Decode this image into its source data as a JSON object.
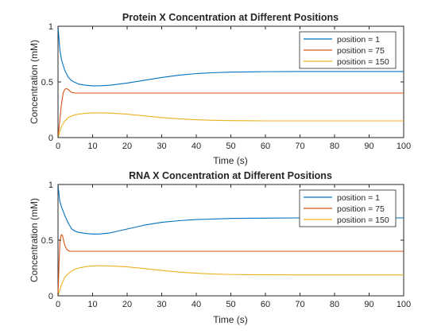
{
  "colors": {
    "series": [
      "#0072BD",
      "#D95319",
      "#EDB120"
    ],
    "axis": "#262626",
    "background": "#ffffff"
  },
  "chart_data": [
    {
      "type": "line",
      "title": "Protein X Concentration at Different Positions",
      "xlabel": "Time (s)",
      "ylabel": "Concentration (mM)",
      "xlim": [
        0,
        100
      ],
      "ylim": [
        0,
        1
      ],
      "xticks": [
        0,
        10,
        20,
        30,
        40,
        50,
        60,
        70,
        80,
        90,
        100
      ],
      "yticks": [
        0,
        0.5,
        1
      ],
      "ytick_labels": [
        "0",
        "0.5",
        "1"
      ],
      "grid": false,
      "legend_position": "top-right",
      "series": [
        {
          "name": "position = 1",
          "x": [
            0,
            0.5,
            1,
            2,
            3,
            4,
            5,
            6,
            8,
            10,
            12,
            15,
            20,
            25,
            30,
            35,
            40,
            45,
            50,
            55,
            60,
            70,
            80,
            90,
            100
          ],
          "y": [
            1.0,
            0.8,
            0.7,
            0.6,
            0.54,
            0.51,
            0.495,
            0.48,
            0.47,
            0.465,
            0.465,
            0.47,
            0.49,
            0.515,
            0.54,
            0.56,
            0.575,
            0.583,
            0.588,
            0.59,
            0.592,
            0.593,
            0.593,
            0.593,
            0.593
          ]
        },
        {
          "name": "position = 75",
          "x": [
            0,
            0.5,
            1,
            1.5,
            2,
            2.5,
            3,
            3.5,
            4,
            5,
            6,
            8,
            10,
            20,
            30,
            40,
            50,
            60,
            70,
            80,
            90,
            100
          ],
          "y": [
            0,
            0.15,
            0.3,
            0.4,
            0.435,
            0.44,
            0.43,
            0.415,
            0.405,
            0.4,
            0.4,
            0.4,
            0.4,
            0.4,
            0.4,
            0.4,
            0.4,
            0.4,
            0.4,
            0.4,
            0.4,
            0.4
          ]
        },
        {
          "name": "position = 150",
          "x": [
            0,
            0.5,
            1,
            2,
            3,
            4,
            5,
            6,
            8,
            10,
            12,
            15,
            20,
            25,
            30,
            35,
            40,
            45,
            50,
            55,
            60,
            70,
            80,
            90,
            100
          ],
          "y": [
            0,
            0.05,
            0.1,
            0.15,
            0.18,
            0.195,
            0.205,
            0.21,
            0.218,
            0.222,
            0.222,
            0.22,
            0.21,
            0.195,
            0.18,
            0.168,
            0.16,
            0.155,
            0.152,
            0.151,
            0.15,
            0.15,
            0.15,
            0.15,
            0.15
          ]
        }
      ]
    },
    {
      "type": "line",
      "title": "RNA X Concentration at Different Positions",
      "xlabel": "Time (s)",
      "ylabel": "Concentration (mM)",
      "xlim": [
        0,
        100
      ],
      "ylim": [
        0,
        1
      ],
      "xticks": [
        0,
        10,
        20,
        30,
        40,
        50,
        60,
        70,
        80,
        90,
        100
      ],
      "yticks": [
        0,
        0.5,
        1
      ],
      "ytick_labels": [
        "0",
        "0.5",
        "1"
      ],
      "grid": false,
      "legend_position": "top-right",
      "series": [
        {
          "name": "position = 1",
          "x": [
            0,
            0.5,
            1,
            2,
            3,
            4,
            5,
            6,
            8,
            10,
            12,
            15,
            20,
            25,
            30,
            35,
            40,
            45,
            50,
            55,
            60,
            70,
            80,
            90,
            100
          ],
          "y": [
            1.0,
            0.85,
            0.8,
            0.72,
            0.65,
            0.6,
            0.58,
            0.57,
            0.56,
            0.555,
            0.555,
            0.565,
            0.6,
            0.635,
            0.66,
            0.675,
            0.685,
            0.69,
            0.695,
            0.697,
            0.698,
            0.7,
            0.7,
            0.7,
            0.7
          ]
        },
        {
          "name": "position = 75",
          "x": [
            0,
            0.3,
            0.6,
            1,
            1.3,
            1.6,
            2,
            2.5,
            3,
            3.5,
            4,
            5,
            6,
            8,
            10,
            20,
            30,
            40,
            50,
            60,
            70,
            80,
            90,
            100
          ],
          "y": [
            0,
            0.3,
            0.5,
            0.55,
            0.54,
            0.5,
            0.45,
            0.42,
            0.405,
            0.4,
            0.4,
            0.4,
            0.4,
            0.4,
            0.4,
            0.4,
            0.4,
            0.4,
            0.4,
            0.4,
            0.4,
            0.4,
            0.4,
            0.4
          ]
        },
        {
          "name": "position = 150",
          "x": [
            0,
            0.5,
            1,
            2,
            3,
            4,
            5,
            6,
            8,
            10,
            12,
            15,
            20,
            25,
            30,
            35,
            40,
            45,
            50,
            55,
            60,
            70,
            80,
            90,
            100
          ],
          "y": [
            0,
            0.05,
            0.1,
            0.17,
            0.2,
            0.225,
            0.24,
            0.25,
            0.262,
            0.268,
            0.27,
            0.268,
            0.26,
            0.245,
            0.228,
            0.213,
            0.203,
            0.196,
            0.192,
            0.19,
            0.189,
            0.188,
            0.188,
            0.188,
            0.188
          ]
        }
      ]
    }
  ]
}
